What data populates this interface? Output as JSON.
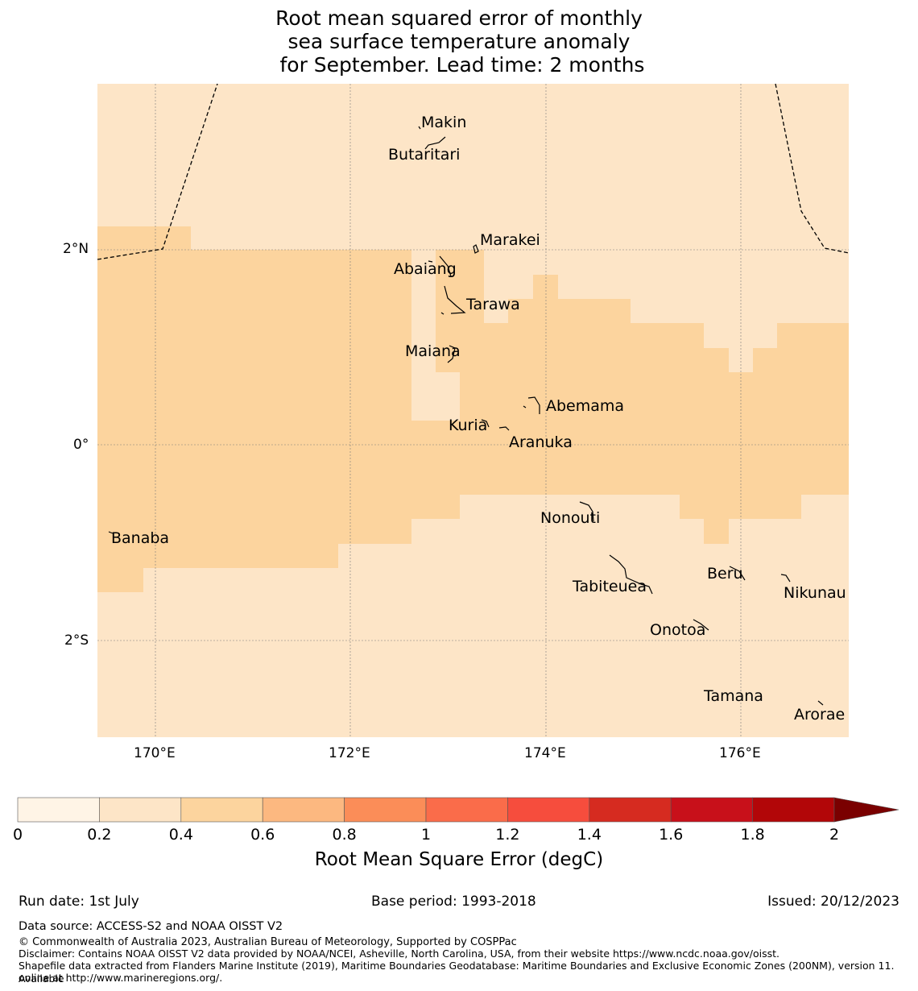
{
  "title": {
    "line1": "Root mean squared error of monthly",
    "line2": "sea surface temperature anomaly",
    "line3": " for September. Lead time: 2 months"
  },
  "map": {
    "lat_labels": [
      "2°N",
      "0°",
      "2°S"
    ],
    "lon_labels": [
      "170°E",
      "172°E",
      "174°E",
      "176°E"
    ],
    "islands": {
      "makin": "Makin",
      "butaritari": "Butaritari",
      "marakei": "Marakei",
      "abaiang": "Abaiang",
      "tarawa": "Tarawa",
      "maiana": "Maiana",
      "abemama": "Abemama",
      "kuria": "Kuria",
      "aranuka": "Aranuka",
      "nonouti": "Nonouti",
      "banaba": "Banaba",
      "beru": "Beru",
      "tabiteuea": "Tabiteuea",
      "nikunau": "Nikunau",
      "onotoa": "Onotoa",
      "tamana": "Tamana",
      "arorae": "Arorae"
    },
    "rmse_classes": {
      "c_0_2_to_0_4": "#fde5c7",
      "c_0_4_to_0_6": "#fcd49e"
    }
  },
  "colorbar": {
    "ticks": [
      "0",
      "0.2",
      "0.4",
      "0.6",
      "0.8",
      "1",
      "1.2",
      "1.4",
      "1.6",
      "1.8",
      "2"
    ],
    "colors": [
      "#fff4e6",
      "#fde5c7",
      "#fcd49e",
      "#fcb880",
      "#fb8d58",
      "#fa6c4a",
      "#f64d3d",
      "#d62b20",
      "#c8101a",
      "#b20608"
    ],
    "extend_color": "#7a0000",
    "label": "Root Mean Square Error (degC)"
  },
  "footer": {
    "run_date": "Run date: 1st July",
    "base_period": "Base period: 1993-2018",
    "issued": "Issued: 20/12/2023",
    "data_source": "Data source: ACCESS-S2 and NOAA OISST V2",
    "copyright": "© Commonwealth of Australia 2023, Australian Bureau of Meteorology, Supported by COSPPac",
    "disclaimer": "Disclaimer: Contains NOAA OISST V2 data provided by NOAA/NCEI, Asheville, North Carolina, USA, from their website https://www.ncdc.noaa.gov/oisst.",
    "shapefile_1": "Shapefile data extracted from Flanders Marine Institute (2019), Maritime Boundaries Geodatabase: Maritime Boundaries and Exclusive Economic Zones (200NM), version 11. Available",
    "shapefile_2": "online at http://www.marineregions.org/."
  }
}
